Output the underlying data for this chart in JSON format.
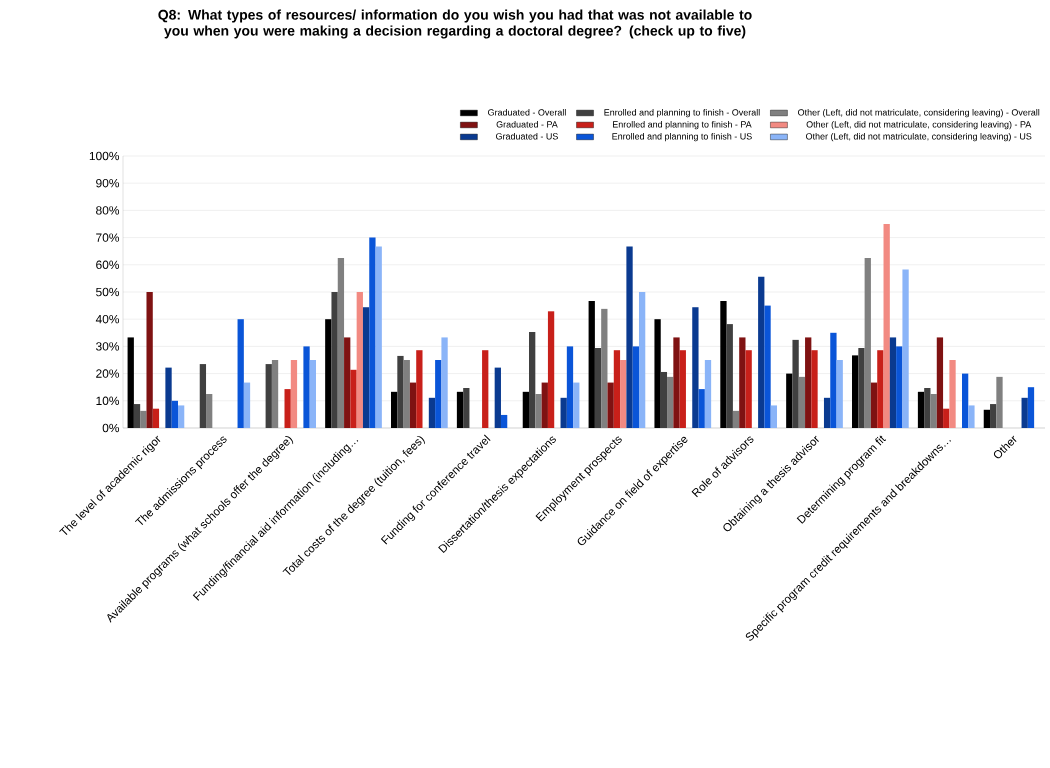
{
  "chart_data": {
    "type": "bar",
    "title": "Q8: What types of resources/ information do you wish you had that was not available to you when you were making a decision regarding a doctoral degree? (check up to five)",
    "categories": [
      "The level of academic rigor",
      "The admissions process",
      "Available programs (what schools offer the degree)",
      "Funding/financial aid information (including…",
      "Total costs of the degree (tuition, fees)",
      "Funding for conference travel",
      "Dissertation/thesis expectations",
      "Employment prospects",
      "Guidance on field of expertise",
      "Role of advisors",
      "Obtaining a thesis advisor",
      "Determining program fit",
      "Specific program credit requirements and breakdowns…",
      "Other"
    ],
    "series": [
      {
        "name": "Graduated - Overall",
        "color": "#000000",
        "values": [
          33.3,
          0,
          0,
          40,
          13.3,
          13.3,
          13.3,
          46.7,
          40,
          46.7,
          20,
          26.7,
          13.3,
          6.7
        ]
      },
      {
        "name": "Enrolled and planning to finish - Overall",
        "color": "#404040",
        "values": [
          8.8,
          23.5,
          23.5,
          50,
          26.5,
          14.7,
          35.3,
          29.4,
          20.6,
          38.2,
          32.4,
          29.4,
          14.7,
          8.8
        ]
      },
      {
        "name": "Other (Left, did not matriculate, considering leaving) - Overall",
        "color": "#808080",
        "values": [
          6.3,
          12.5,
          25,
          62.5,
          25,
          0,
          12.5,
          43.8,
          18.8,
          6.3,
          18.8,
          62.5,
          12.5,
          18.8
        ]
      },
      {
        "name": "Graduated - PA",
        "color": "#7f1212",
        "values": [
          50,
          0,
          0,
          33.3,
          16.7,
          0,
          16.7,
          16.7,
          33.3,
          33.3,
          33.3,
          16.7,
          33.3,
          0
        ]
      },
      {
        "name": "Enrolled and planning to finish - PA",
        "color": "#c8201a",
        "values": [
          7.1,
          0,
          14.3,
          21.4,
          28.6,
          28.6,
          42.9,
          28.6,
          28.6,
          28.6,
          28.6,
          28.6,
          7.1,
          0
        ]
      },
      {
        "name": "Other (Left, did not matriculate, considering leaving) - PA",
        "color": "#f28a82",
        "values": [
          0,
          0,
          25,
          50,
          0,
          0,
          0,
          25,
          0,
          0,
          0,
          75,
          25,
          0
        ]
      },
      {
        "name": "Graduated - US",
        "color": "#0a3a90",
        "values": [
          22.2,
          0,
          0,
          44.4,
          11.1,
          22.2,
          11.1,
          66.7,
          44.4,
          55.6,
          11.1,
          33.3,
          0,
          11.1
        ]
      },
      {
        "name": "Enrolled and planning to finish - US",
        "color": "#0a55d8",
        "values": [
          10,
          40,
          30,
          70,
          25,
          4.8,
          30,
          30,
          14.3,
          45,
          35,
          30,
          20,
          15
        ]
      },
      {
        "name": "Other (Left, did not matriculate, considering leaving) - US",
        "color": "#8ab4f8",
        "values": [
          8.3,
          16.7,
          25,
          66.7,
          33.3,
          0,
          16.7,
          50,
          25,
          8.3,
          25,
          58.3,
          8.3,
          null
        ]
      }
    ],
    "ylim": [
      0,
      100
    ],
    "yticks": [
      {
        "value": 0,
        "label": "0%"
      },
      {
        "value": 10,
        "label": "10%"
      },
      {
        "value": 20,
        "label": "20%"
      },
      {
        "value": 30,
        "label": "30%"
      },
      {
        "value": 40,
        "label": "40%"
      },
      {
        "value": 50,
        "label": "50%"
      },
      {
        "value": 60,
        "label": "60%"
      },
      {
        "value": 70,
        "label": "70%"
      },
      {
        "value": 80,
        "label": "80%"
      },
      {
        "value": 90,
        "label": "90%"
      },
      {
        "value": 100,
        "label": "100%"
      }
    ],
    "grid": "y",
    "legend": "top"
  }
}
